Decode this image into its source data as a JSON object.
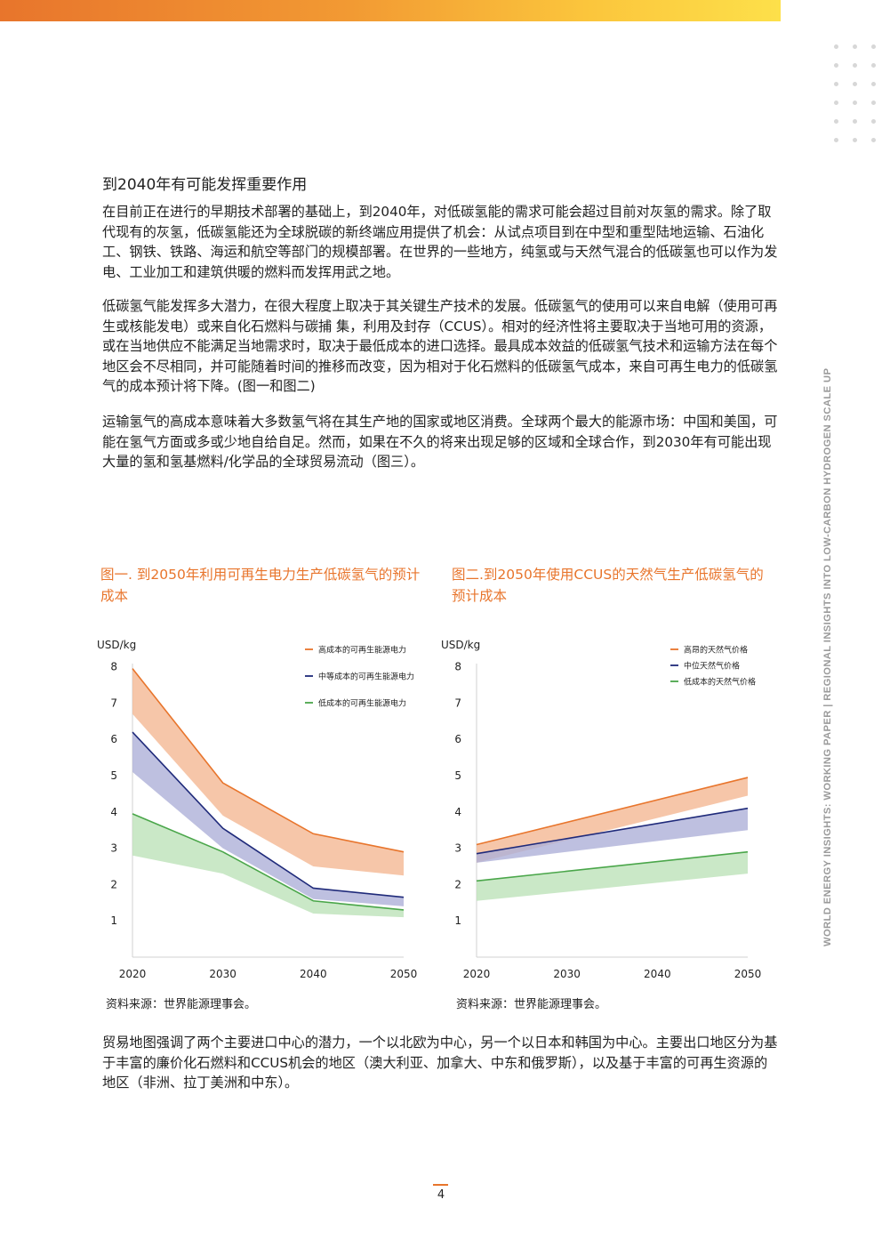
{
  "header": {
    "side_running_title": "WORLD ENERGY INSIGHTS: WORKING PAPER | REGIONAL INSIGHTS INTO LOW-CARBON HYDROGEN SCALE UP"
  },
  "section": {
    "heading": "到2040年有可能发挥重要作用",
    "paragraphs": [
      "在目前正在进行的早期技术部署的基础上，到2040年，对低碳氢能的需求可能会超过目前对灰氢的需求。除了取代现有的灰氢，低碳氢能还为全球脱碳的新终端应用提供了机会：从试点项目到在中型和重型陆地运输、石油化工、钢铁、铁路、海运和航空等部门的规模部署。在世界的一些地方，纯氢或与天然气混合的低碳氢也可以作为发电、工业加工和建筑供暖的燃料而发挥用武之地。",
      "低碳氢气能发挥多大潜力，在很大程度上取决于其关键生产技术的发展。低碳氢气的使用可以来自电解（使用可再生或核能发电）或来自化石燃料与碳捕 集，利用及封存（CCUS）。相对的经济性将主要取决于当地可用的资源，或在当地供应不能满足当地需求时，取决于最低成本的进口选择。最具成本效益的低碳氢气技术和运输方法在每个地区会不尽相同，并可能随着时间的推移而改变，因为相对于化石燃料的低碳氢气成本，来自可再生电力的低碳氢气的成本预计将下降。(图一和图二)",
      "运输氢气的高成本意味着大多数氢气将在其生产地的国家或地区消费。全球两个最大的能源市场：中国和美国，可能在氢气方面或多或少地自给自足。然而，如果在不久的将来出现足够的区域和全球合作，到2030年有可能出现大量的氢和氢基燃料/化学品的全球贸易流动（图三）。"
    ],
    "closing_paragraph": "贸易地图强调了两个主要进口中心的潜力，一个以北欧为中心，另一个以日本和韩国为中心。主要出口地区分为基于丰富的廉价化石燃料和CCUS机会的地区（澳大利亚、加拿大、中东和俄罗斯），以及基于丰富的可再生资源的地区（非洲、拉丁美洲和中东）。"
  },
  "page_number": "4",
  "colors": {
    "accent": "#e8752c",
    "high": "#e8752c",
    "mid": "#1f2a7a",
    "low": "#4aa64a"
  },
  "chart_data": [
    {
      "type": "area",
      "title": "图一. 到2050年利用可再生电力生产低碳氢气的预计成本",
      "ylabel": "USD/kg",
      "x": [
        2020,
        2030,
        2040,
        2050
      ],
      "xticks": [
        "2020",
        "2030",
        "2040",
        "2050"
      ],
      "yticks": [
        "1",
        "2",
        "3",
        "4",
        "5",
        "6",
        "7",
        "8"
      ],
      "ylim": [
        0,
        8.4
      ],
      "legend_position": "top-right",
      "source": "资料来源：世界能源理事会。",
      "series": [
        {
          "name": "高成本的可再生能源电力",
          "color": "#e8752c",
          "band": "#f4b894",
          "upper": [
            7.95,
            4.8,
            3.4,
            2.9
          ],
          "lower": [
            6.7,
            3.9,
            2.5,
            2.25
          ]
        },
        {
          "name": "中等成本的可再生能源电力",
          "color": "#1f2a7a",
          "band": "#aeb0d8",
          "upper": [
            6.2,
            3.55,
            1.9,
            1.65
          ],
          "lower": [
            5.1,
            3.0,
            1.6,
            1.4
          ]
        },
        {
          "name": "低成本的可再生能源电力",
          "color": "#4aa64a",
          "band": "#bde2b9",
          "upper": [
            3.95,
            2.9,
            1.55,
            1.3
          ],
          "lower": [
            2.8,
            2.3,
            1.2,
            1.1
          ]
        }
      ]
    },
    {
      "type": "area",
      "title": "图二.到2050年使用CCUS的天然气生产低碳氢气的预计成本",
      "ylabel": "USD/kg",
      "x": [
        2020,
        2050
      ],
      "xticks": [
        "2020",
        "2030",
        "2040",
        "2050"
      ],
      "yticks": [
        "1",
        "2",
        "3",
        "4",
        "5",
        "6",
        "7",
        "8"
      ],
      "ylim": [
        0,
        8.4
      ],
      "legend_position": "top-right",
      "source": "资料来源：世界能源理事会。",
      "series": [
        {
          "name": "高昂的天然气价格",
          "color": "#e8752c",
          "band": "#f4b894",
          "upper": [
            3.1,
            4.95
          ],
          "lower": [
            2.6,
            4.45
          ]
        },
        {
          "name": "中位天然气价格",
          "color": "#1f2a7a",
          "band": "#aeb0d8",
          "upper": [
            2.85,
            4.1
          ],
          "lower": [
            2.6,
            3.5
          ]
        },
        {
          "name": "低成本的天然气价格",
          "color": "#4aa64a",
          "band": "#bde2b9",
          "upper": [
            2.1,
            2.9
          ],
          "lower": [
            1.55,
            2.3
          ]
        }
      ]
    }
  ]
}
